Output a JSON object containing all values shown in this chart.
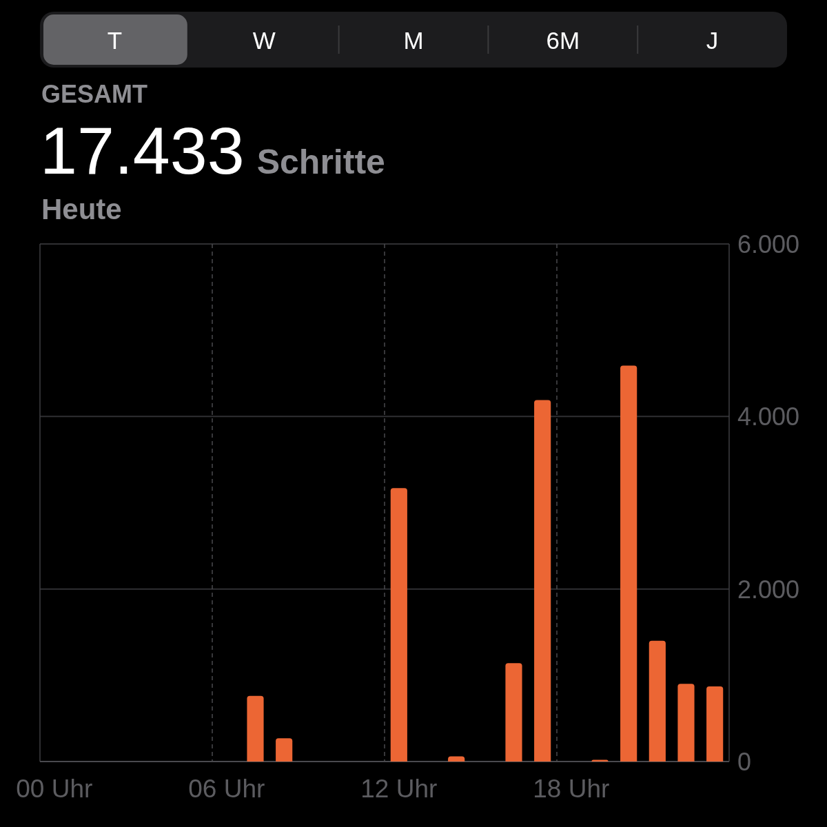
{
  "chart_data": {
    "type": "bar",
    "title": "17.433 Schritte",
    "subtitle": "Heute",
    "annotations": [
      "GESAMT",
      "T",
      "W",
      "M",
      "6M",
      "J"
    ],
    "categories": [
      "00 Uhr",
      null,
      null,
      null,
      null,
      null,
      "06 Uhr",
      null,
      null,
      null,
      null,
      null,
      "12 Uhr",
      null,
      null,
      null,
      null,
      null,
      "18 Uhr",
      null,
      null,
      null,
      null,
      null
    ],
    "values": [
      null,
      null,
      null,
      null,
      null,
      null,
      null,
      760,
      270,
      null,
      null,
      null,
      3170,
      null,
      60,
      null,
      1140,
      4190,
      null,
      20,
      4590,
      1400,
      900,
      870
    ],
    "color": "#ec6634",
    "ylim": [
      0,
      6000
    ],
    "yticks": [
      0,
      {
        "value": 2000,
        "label": "2.000"
      },
      {
        "value": 4000,
        "label": "4.000"
      },
      {
        "value": 6000,
        "label": "6.000"
      }
    ],
    "grid": true
  }
}
